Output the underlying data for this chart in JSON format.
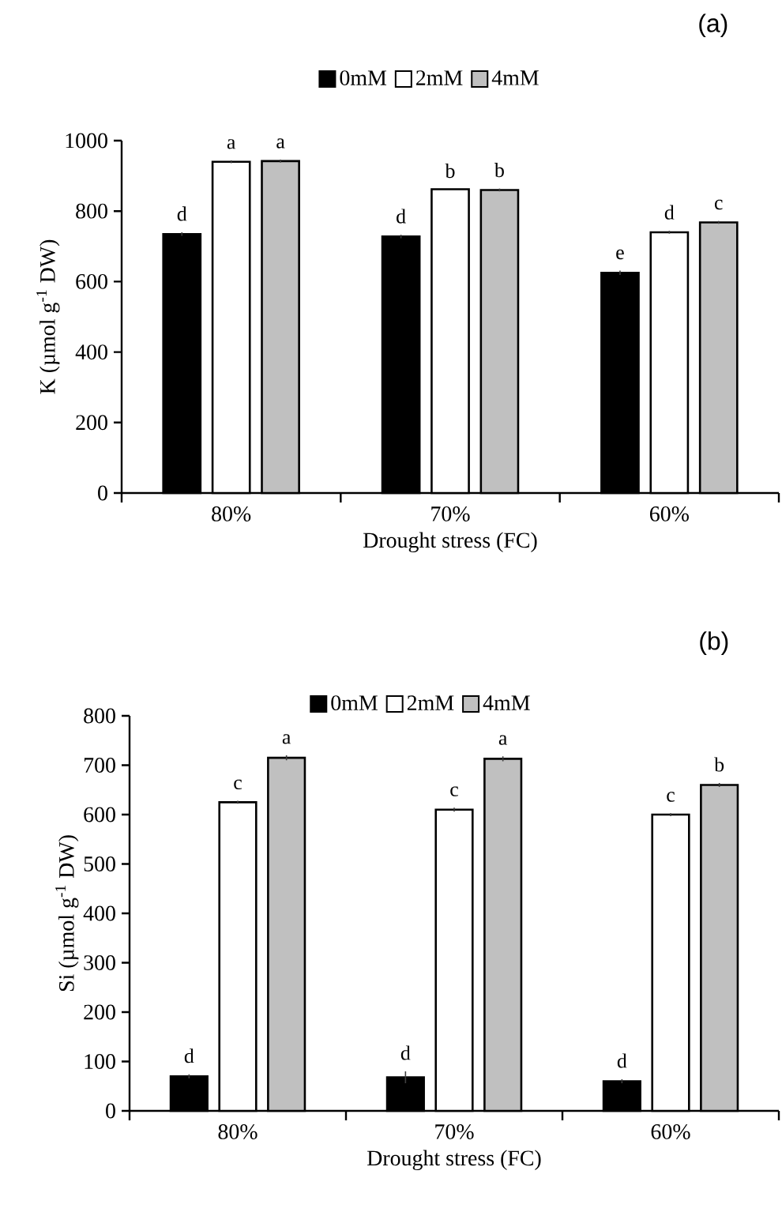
{
  "chart_data": [
    {
      "type": "bar",
      "title": "(a)",
      "xlabel": "Drought stress (FC)",
      "ylabel": "K (µmol g$^{-1}$ DW)",
      "categories": [
        "80%",
        "70%",
        "60%"
      ],
      "ylim": [
        0,
        1000
      ],
      "yticks": [
        0,
        200,
        400,
        600,
        800,
        1000
      ],
      "legend": "top",
      "series": [
        {
          "name": "0mM",
          "color": "#000000",
          "values": [
            735,
            728,
            625
          ],
          "errors": [
            5,
            5,
            6
          ],
          "value_labels": [
            "d",
            "d",
            "e"
          ]
        },
        {
          "name": "2mM",
          "color": "#ffffff",
          "values": [
            940,
            862,
            740
          ],
          "errors": [
            4,
            null,
            4
          ],
          "value_labels": [
            "a",
            "b",
            "d"
          ]
        },
        {
          "name": "4mM",
          "color": "#c0c0c0",
          "values": [
            942,
            860,
            768
          ],
          "errors": [
            4,
            4,
            4
          ],
          "value_labels": [
            "a",
            "b",
            "c"
          ]
        }
      ]
    },
    {
      "type": "bar",
      "title": "(b)",
      "xlabel": "Drought stress (FC)",
      "ylabel": "Si (µmol g$^{-1}$ DW)",
      "categories": [
        "80%",
        "70%",
        "60%"
      ],
      "ylim": [
        0,
        800
      ],
      "yticks": [
        0,
        100,
        200,
        300,
        400,
        500,
        600,
        700,
        800
      ],
      "legend": "top",
      "series": [
        {
          "name": "0mM",
          "color": "#000000",
          "values": [
            70,
            68,
            60
          ],
          "errors": [
            4,
            12,
            4
          ],
          "value_labels": [
            "d",
            "d",
            "d"
          ]
        },
        {
          "name": "2mM",
          "color": "#ffffff",
          "values": [
            625,
            610,
            600
          ],
          "errors": [
            3,
            4,
            3
          ],
          "value_labels": [
            "c",
            "c",
            "c"
          ]
        },
        {
          "name": "4mM",
          "color": "#c0c0c0",
          "values": [
            715,
            713,
            660
          ],
          "errors": [
            5,
            5,
            4
          ],
          "value_labels": [
            "a",
            "a",
            "b"
          ]
        }
      ]
    }
  ]
}
